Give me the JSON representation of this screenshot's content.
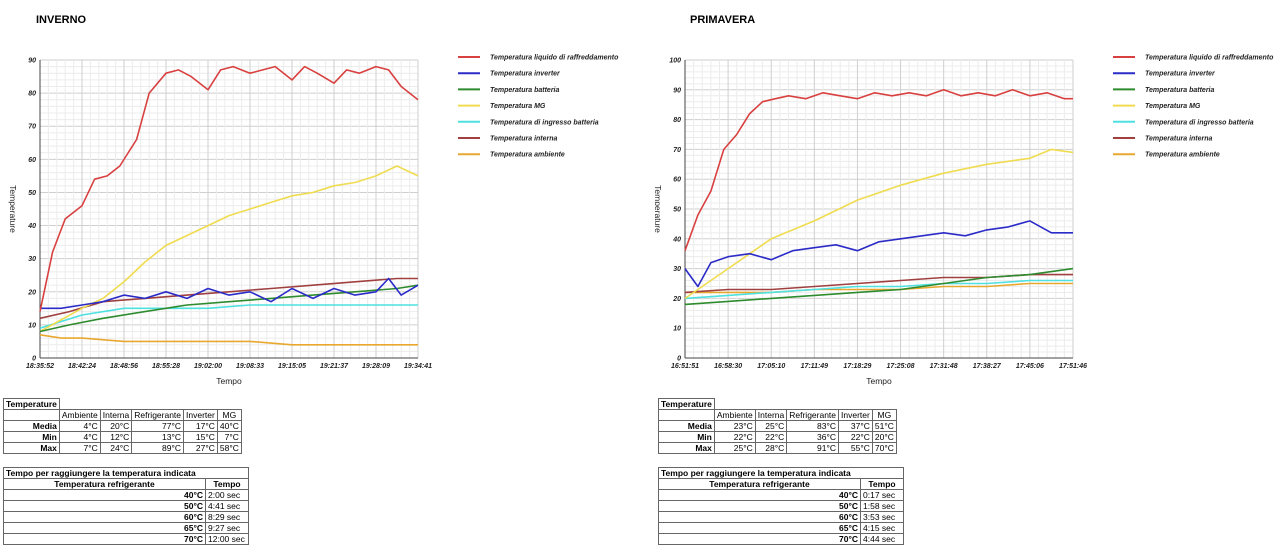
{
  "colors": {
    "coolant": "#d94040",
    "inverter": "#2b2bc8",
    "battery": "#2e8b2e",
    "mg": "#f0dc50",
    "battery_in": "#4fe0e0",
    "interior": "#a04040",
    "ambient": "#e8a830"
  },
  "legend": [
    {
      "key": "coolant",
      "label": "Temperatura liquido di raffreddamento"
    },
    {
      "key": "inverter",
      "label": "Temperatura inverter"
    },
    {
      "key": "battery",
      "label": "Temperatura batteria"
    },
    {
      "key": "mg",
      "label": "Temperatura MG"
    },
    {
      "key": "battery_in",
      "label": "Temperatura di ingresso batteria"
    },
    {
      "key": "interior",
      "label": "Temperatura interna"
    },
    {
      "key": "ambient",
      "label": "Temperatura ambiente"
    }
  ],
  "panels": [
    {
      "season": "INVERNO",
      "stats_title": "Temperature",
      "stats_headers": [
        "Ambiente",
        "Interna",
        "Refrigerante",
        "Inverter",
        "MG"
      ],
      "stats_rows": [
        {
          "label": "Media",
          "values": [
            "4°C",
            "20°C",
            "77°C",
            "17°C",
            "40°C"
          ]
        },
        {
          "label": "Min",
          "values": [
            "4°C",
            "12°C",
            "13°C",
            "15°C",
            "7°C"
          ]
        },
        {
          "label": "Max",
          "values": [
            "7°C",
            "24°C",
            "89°C",
            "27°C",
            "58°C"
          ]
        }
      ],
      "time_title": "Tempo per raggiungere la temperatura indicata",
      "time_col1": "Temperatura refrigerante",
      "time_col2": "Tempo",
      "time_rows": [
        {
          "temp": "40°C",
          "time": "2:00 sec"
        },
        {
          "temp": "50°C",
          "time": "4:41 sec"
        },
        {
          "temp": "60°C",
          "time": "8:29 sec"
        },
        {
          "temp": "65°C",
          "time": "9:27 sec"
        },
        {
          "temp": "70°C",
          "time": "12:00 sec"
        }
      ]
    },
    {
      "season": "PRIMAVERA",
      "stats_title": "Temperature",
      "stats_headers": [
        "Ambiente",
        "Interna",
        "Refrigerante",
        "Inverter",
        "MG"
      ],
      "stats_rows": [
        {
          "label": "Media",
          "values": [
            "23°C",
            "25°C",
            "83°C",
            "37°C",
            "51°C"
          ]
        },
        {
          "label": "Min",
          "values": [
            "22°C",
            "22°C",
            "36°C",
            "22°C",
            "20°C"
          ]
        },
        {
          "label": "Max",
          "values": [
            "25°C",
            "28°C",
            "91°C",
            "55°C",
            "70°C"
          ]
        }
      ],
      "time_title": "Tempo per raggiungere la temperatura indicata",
      "time_col1": "Temperatura refrigerante",
      "time_col2": "Tempo",
      "time_rows": [
        {
          "temp": "40°C",
          "time": "0:17 sec"
        },
        {
          "temp": "50°C",
          "time": "1:58 sec"
        },
        {
          "temp": "60°C",
          "time": "3:53 sec"
        },
        {
          "temp": "65°C",
          "time": "4:15 sec"
        },
        {
          "temp": "70°C",
          "time": "4:44 sec"
        }
      ]
    }
  ],
  "chart_data": [
    {
      "type": "line",
      "xlabel": "Tempo",
      "ylabel": "Temperature",
      "ylim": [
        0,
        90
      ],
      "yticks": [
        0,
        10,
        20,
        30,
        40,
        50,
        60,
        70,
        80,
        90
      ],
      "xticks": [
        "18:35:52",
        "18:42:24",
        "18:48:56",
        "18:55:28",
        "19:02:00",
        "19:08:33",
        "19:15:05",
        "19:21:37",
        "19:28:09",
        "19:34:41"
      ],
      "legend_position": "right",
      "grid": true,
      "series": [
        {
          "key": "coolant",
          "name": "Temperatura liquido di raffreddamento",
          "x": [
            0,
            0.3,
            0.6,
            1,
            1.3,
            1.6,
            1.9,
            2.3,
            2.6,
            3,
            3.3,
            3.6,
            4,
            4.3,
            4.6,
            5,
            5.3,
            5.6,
            6,
            6.3,
            6.6,
            7,
            7.3,
            7.6,
            8,
            8.3,
            8.6,
            9
          ],
          "y": [
            14,
            32,
            42,
            46,
            54,
            55,
            58,
            66,
            80,
            86,
            87,
            85,
            81,
            87,
            88,
            86,
            87,
            88,
            84,
            88,
            86,
            83,
            87,
            86,
            88,
            87,
            82,
            78
          ]
        },
        {
          "key": "inverter",
          "name": "Temperatura inverter",
          "x": [
            0,
            0.5,
            1,
            1.5,
            2,
            2.5,
            3,
            3.5,
            4,
            4.5,
            5,
            5.5,
            6,
            6.5,
            7,
            7.5,
            8,
            8.3,
            8.6,
            9
          ],
          "y": [
            15,
            15,
            16,
            17,
            19,
            18,
            20,
            18,
            21,
            19,
            20,
            17,
            21,
            18,
            21,
            19,
            20,
            24,
            19,
            22
          ]
        },
        {
          "key": "battery",
          "name": "Temperatura batteria",
          "x": [
            0,
            0.7,
            1.5,
            2.5,
            3.5,
            4.5,
            5.5,
            6.5,
            7.5,
            8.5,
            9
          ],
          "y": [
            8,
            10,
            12,
            14,
            16,
            17,
            18,
            19,
            20,
            21,
            22
          ]
        },
        {
          "key": "mg",
          "name": "Temperatura MG",
          "x": [
            0,
            1,
            1.5,
            2,
            2.5,
            3,
            3.5,
            4,
            4.5,
            5,
            5.5,
            6,
            6.5,
            7,
            7.5,
            8,
            8.5,
            9
          ],
          "y": [
            8,
            15,
            18,
            23,
            29,
            34,
            37,
            40,
            43,
            45,
            47,
            49,
            50,
            52,
            53,
            55,
            58,
            55
          ]
        },
        {
          "key": "battery_in",
          "name": "Temperatura di ingresso batteria",
          "x": [
            0,
            1,
            2,
            3,
            4,
            5,
            6,
            7,
            8,
            9
          ],
          "y": [
            9,
            13,
            15,
            15,
            15,
            16,
            16,
            16,
            16,
            16
          ]
        },
        {
          "key": "interior",
          "name": "Temperatura interna",
          "x": [
            0,
            0.7,
            1.5,
            2.5,
            3.5,
            4.5,
            5.5,
            6.5,
            7.5,
            8.5,
            9
          ],
          "y": [
            12,
            14,
            17,
            18,
            19,
            20,
            21,
            22,
            23,
            24,
            24
          ]
        },
        {
          "key": "ambient",
          "name": "Temperatura ambiente",
          "x": [
            0,
            0.5,
            1,
            2,
            3,
            4,
            5,
            6,
            7,
            8,
            9
          ],
          "y": [
            7,
            6,
            6,
            5,
            5,
            5,
            5,
            4,
            4,
            4,
            4
          ]
        }
      ]
    },
    {
      "type": "line",
      "xlabel": "Tempo",
      "ylabel": "Temperature",
      "ylim": [
        0,
        100
      ],
      "yticks": [
        0,
        10,
        20,
        30,
        40,
        50,
        60,
        70,
        80,
        90,
        100
      ],
      "xticks": [
        "16:51:51",
        "16:58:30",
        "17:05:10",
        "17:11:49",
        "17:18:29",
        "17:25:08",
        "17:31:48",
        "17:38:27",
        "17:45:06",
        "17:51:46"
      ],
      "legend_position": "right",
      "grid": true,
      "series": [
        {
          "key": "coolant",
          "name": "Temperatura liquido di raffreddamento",
          "x": [
            0,
            0.3,
            0.6,
            0.9,
            1.2,
            1.5,
            1.8,
            2.1,
            2.4,
            2.8,
            3.2,
            3.6,
            4,
            4.4,
            4.8,
            5.2,
            5.6,
            6,
            6.4,
            6.8,
            7.2,
            7.6,
            8,
            8.4,
            8.8,
            9
          ],
          "y": [
            36,
            48,
            56,
            70,
            75,
            82,
            86,
            87,
            88,
            87,
            89,
            88,
            87,
            89,
            88,
            89,
            88,
            90,
            88,
            89,
            88,
            90,
            88,
            89,
            87,
            87
          ]
        },
        {
          "key": "inverter",
          "name": "Temperatura inverter",
          "x": [
            0,
            0.3,
            0.6,
            1,
            1.5,
            2,
            2.5,
            3,
            3.5,
            4,
            4.5,
            5,
            5.5,
            6,
            6.5,
            7,
            7.5,
            8,
            8.5,
            9
          ],
          "y": [
            30,
            24,
            32,
            34,
            35,
            33,
            36,
            37,
            38,
            36,
            39,
            40,
            41,
            42,
            41,
            43,
            44,
            46,
            42,
            42
          ]
        },
        {
          "key": "battery",
          "name": "Temperatura batteria",
          "x": [
            0,
            1,
            2,
            3,
            4,
            5,
            6,
            7,
            8,
            9
          ],
          "y": [
            18,
            19,
            20,
            21,
            22,
            23,
            25,
            27,
            28,
            30
          ]
        },
        {
          "key": "mg",
          "name": "Temperatura MG",
          "x": [
            0,
            1,
            1.5,
            2,
            3,
            4,
            5,
            5.5,
            6,
            7,
            7.5,
            8,
            8.5,
            9
          ],
          "y": [
            20,
            30,
            35,
            40,
            46,
            53,
            58,
            60,
            62,
            65,
            66,
            67,
            70,
            69
          ]
        },
        {
          "key": "battery_in",
          "name": "Temperatura di ingresso batteria",
          "x": [
            0,
            1,
            2,
            3,
            4,
            5,
            6,
            7,
            8,
            9
          ],
          "y": [
            20,
            21,
            22,
            23,
            24,
            24,
            25,
            25,
            26,
            26
          ]
        },
        {
          "key": "interior",
          "name": "Temperatura interna",
          "x": [
            0,
            1,
            2,
            3,
            4,
            5,
            6,
            7,
            8,
            9
          ],
          "y": [
            22,
            23,
            23,
            24,
            25,
            26,
            27,
            27,
            28,
            28
          ]
        },
        {
          "key": "ambient",
          "name": "Temperatura ambiente",
          "x": [
            0,
            1,
            2,
            3,
            4,
            5,
            6,
            7,
            8,
            9
          ],
          "y": [
            22,
            22,
            22,
            23,
            23,
            23,
            24,
            24,
            25,
            25
          ]
        }
      ]
    }
  ]
}
